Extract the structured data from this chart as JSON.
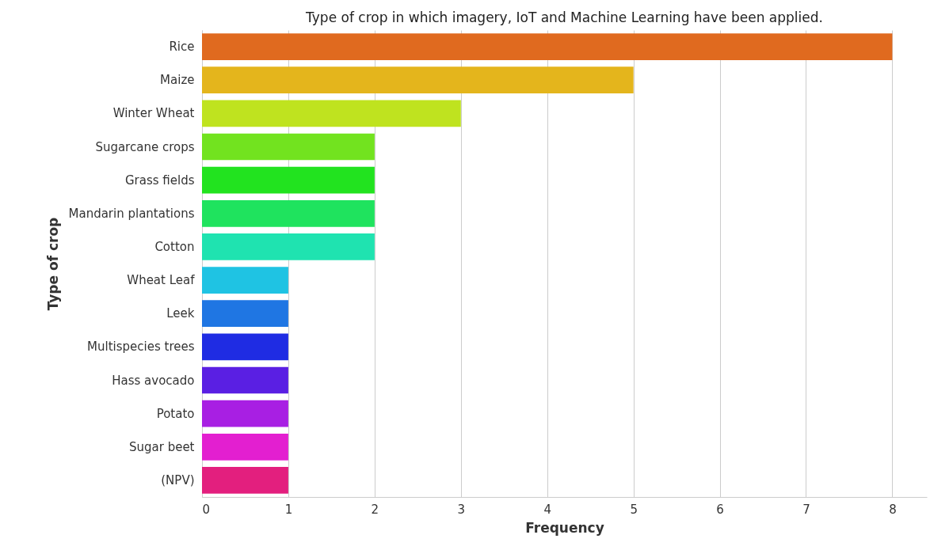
{
  "chart_data": {
    "type": "bar",
    "orientation": "horizontal",
    "title": "Type of crop in which imagery, IoT and Machine Learning have been applied.",
    "xlabel": "Frequency",
    "ylabel": "Type of crop",
    "categories": [
      "Rice",
      "Maize",
      "Winter Wheat",
      "Sugarcane crops",
      "Grass fields",
      "Mandarin plantations",
      "Cotton",
      "Wheat Leaf",
      "Leek",
      "Multispecies trees",
      "Hass avocado",
      "Potato",
      "Sugar beet",
      "(NPV)"
    ],
    "values": [
      8,
      5,
      3,
      2,
      2,
      2,
      2,
      1,
      1,
      1,
      1,
      1,
      1,
      1
    ],
    "colors": [
      "#e06a1f",
      "#e4b51c",
      "#bfe31f",
      "#72e31f",
      "#22e31f",
      "#1fe35e",
      "#1fe3b0",
      "#1fc3e3",
      "#1f76e3",
      "#1f2ce3",
      "#5a1fe3",
      "#a81fe3",
      "#e31fd0",
      "#e31f7e"
    ],
    "xlim": [
      0,
      8.4
    ],
    "xticks": [
      0,
      1,
      2,
      3,
      4,
      5,
      6,
      7,
      8
    ],
    "grid": "x"
  }
}
